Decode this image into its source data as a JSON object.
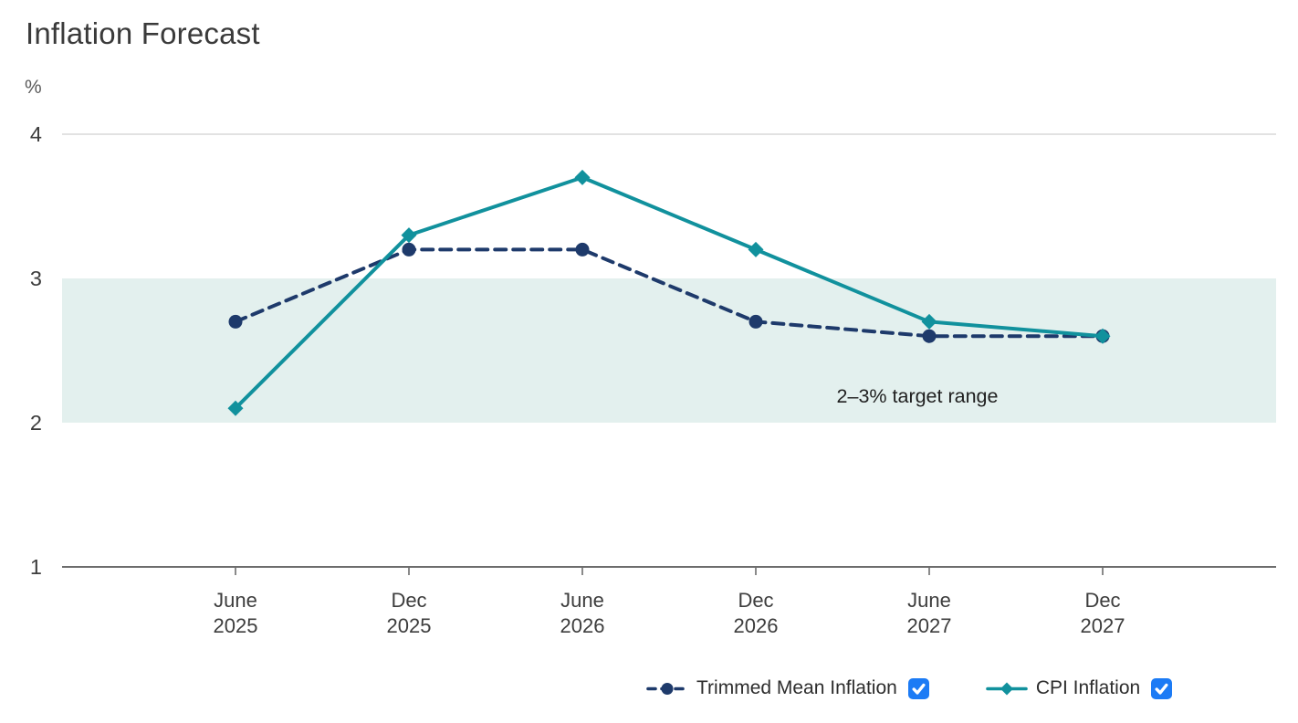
{
  "title": "Inflation Forecast",
  "chart_data": {
    "type": "line",
    "title": "Inflation Forecast",
    "xlabel": "",
    "ylabel": "%",
    "y_unit": "%",
    "categories": [
      {
        "month": "June",
        "year": "2025"
      },
      {
        "month": "Dec",
        "year": "2025"
      },
      {
        "month": "June",
        "year": "2026"
      },
      {
        "month": "Dec",
        "year": "2026"
      },
      {
        "month": "June",
        "year": "2027"
      },
      {
        "month": "Dec",
        "year": "2027"
      }
    ],
    "series": [
      {
        "name": "Trimmed Mean Inflation",
        "values": [
          2.7,
          3.2,
          3.2,
          2.7,
          2.6,
          2.6
        ],
        "color": "#1e3a6b",
        "line_style": "dashed",
        "marker": "circle",
        "checked": true
      },
      {
        "name": "CPI Inflation",
        "values": [
          2.1,
          3.3,
          3.7,
          3.2,
          2.7,
          2.6
        ],
        "color": "#11919d",
        "line_style": "solid",
        "marker": "diamond",
        "checked": true
      }
    ],
    "ylim": [
      1,
      4
    ],
    "yticks": [
      1,
      2,
      3,
      4
    ],
    "band": {
      "from": 2,
      "to": 3,
      "label": "2–3% target range",
      "color": "#e3f0ee"
    },
    "grid": "top-gridline-only",
    "legend_position": "bottom"
  },
  "colors": {
    "gridline": "#d9d9d9",
    "axis_line": "#6d6d6d",
    "tick_text": "#3d3d3d",
    "band_label_text": "#1f1f1f",
    "checkbox_accent": "#1c7bf5",
    "checkbox_check": "#ffffff"
  }
}
